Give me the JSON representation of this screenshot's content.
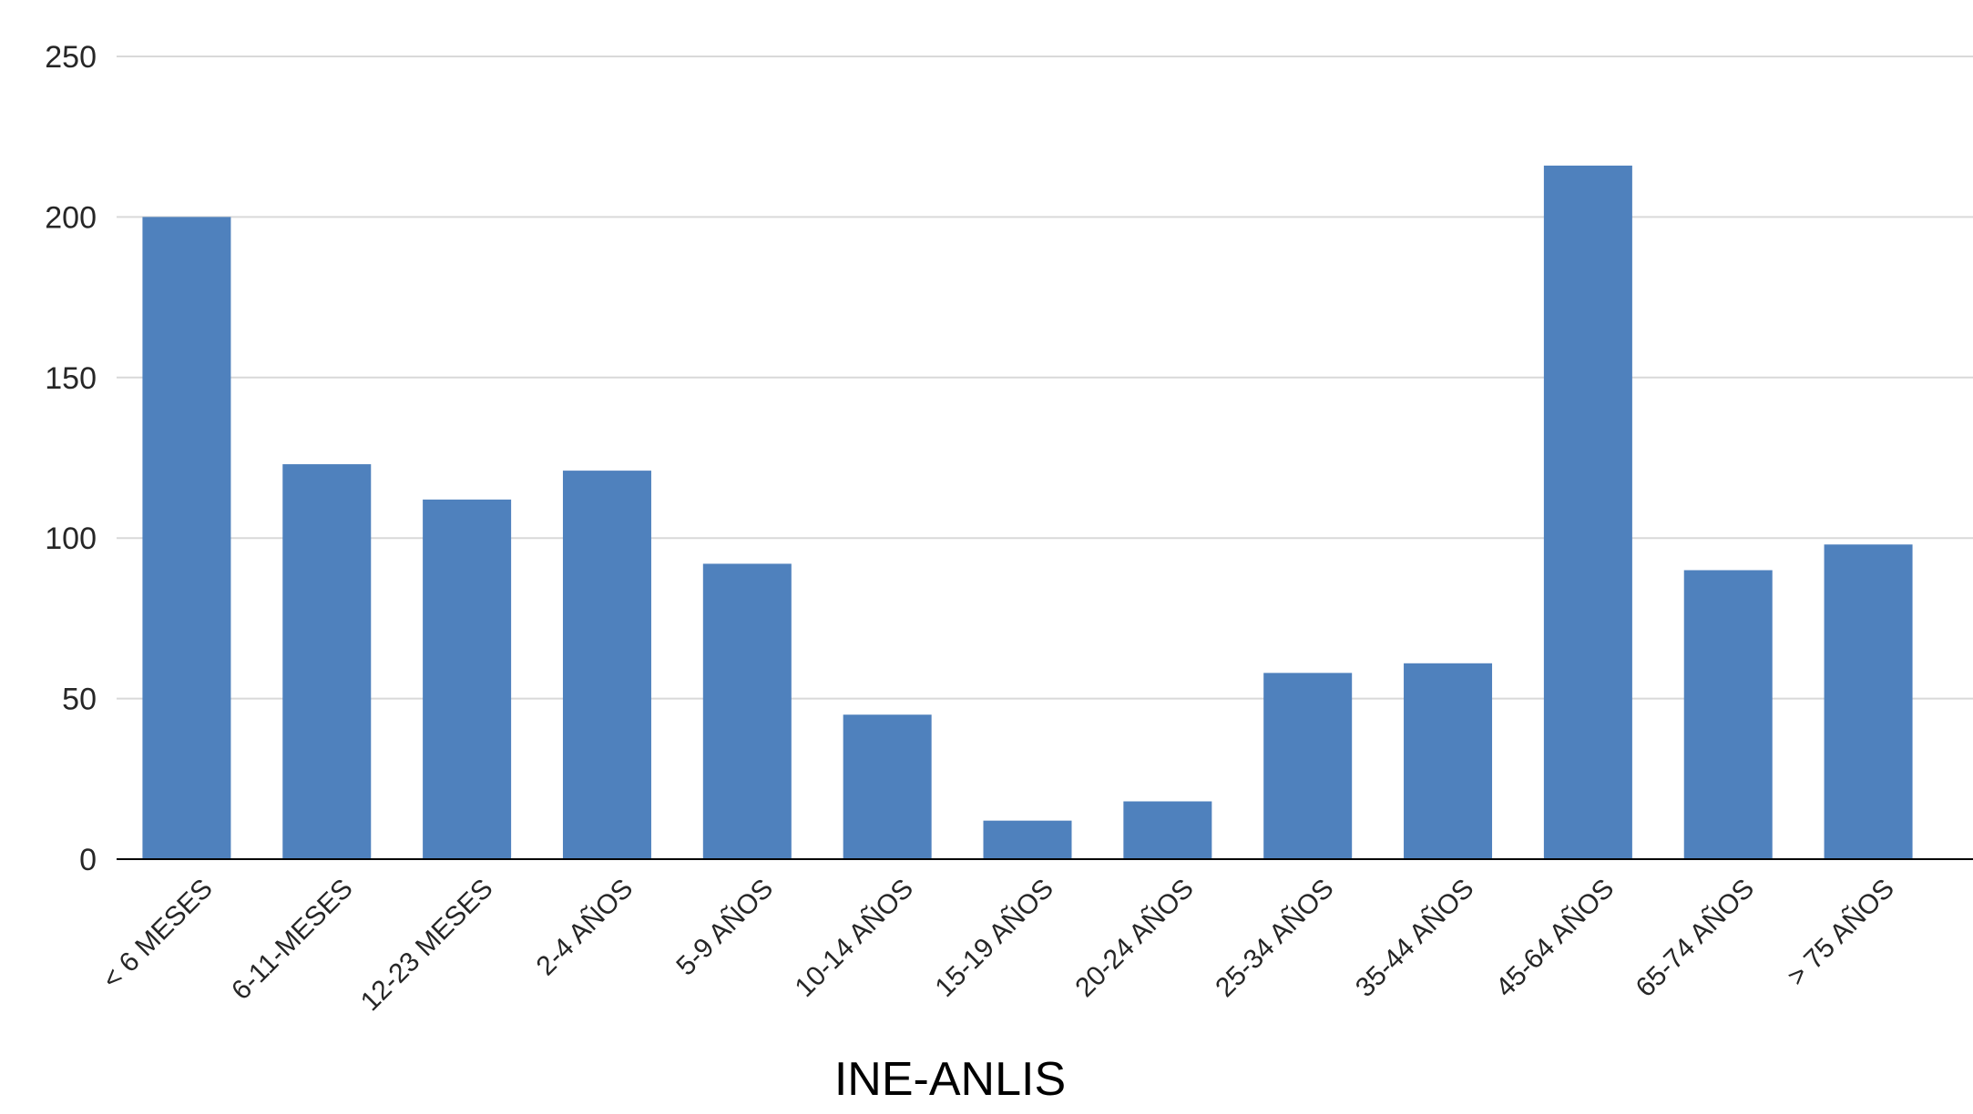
{
  "chart_data": {
    "type": "bar",
    "title": "",
    "xlabel": "INE-ANLIS",
    "ylabel": "",
    "categories": [
      "< 6 MESES",
      "6-11-MESES",
      "12-23 MESES",
      "2-4 AÑOS",
      "5-9 AÑOS",
      "10-14 AÑOS",
      "15-19 AÑOS",
      "20-24 AÑOS",
      "25-34 AÑOS",
      "35-44 AÑOS",
      "45-64 AÑOS",
      "65-74 AÑOS",
      "> 75 AÑOS"
    ],
    "values": [
      200,
      123,
      112,
      121,
      92,
      45,
      12,
      18,
      58,
      61,
      216,
      90,
      98
    ],
    "ylim": [
      0,
      250
    ],
    "yticks": [
      0,
      50,
      100,
      150,
      200,
      250
    ],
    "grid": true,
    "legend": "none",
    "colors": {
      "bar": "#4f81bd",
      "grid": "#d9d9d9",
      "axis": "#000000"
    }
  }
}
